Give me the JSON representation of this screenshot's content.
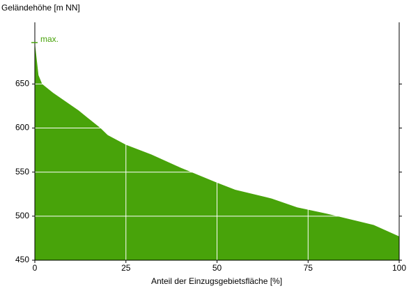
{
  "chart_data": {
    "type": "area",
    "y_label": "Geländehöhe [m NN]",
    "x_label": "Anteil der Einzugsgebietsfläche [%]",
    "x": [
      0,
      1,
      2,
      5,
      12,
      18,
      20,
      25,
      32,
      40,
      50,
      55,
      65,
      72,
      80,
      93,
      100
    ],
    "values": [
      697,
      660,
      650,
      640,
      620,
      600,
      592,
      581,
      570,
      555,
      538,
      530,
      520,
      510,
      503,
      490,
      477
    ],
    "color": "#48a30a",
    "xlim": [
      0,
      100
    ],
    "xticks": [
      0,
      25,
      50,
      75,
      100
    ],
    "ylim": [
      450,
      720
    ],
    "yticks": [
      450,
      500,
      550,
      600,
      650
    ],
    "grid": true,
    "annotation": {
      "text": "max.",
      "value": 697
    }
  }
}
